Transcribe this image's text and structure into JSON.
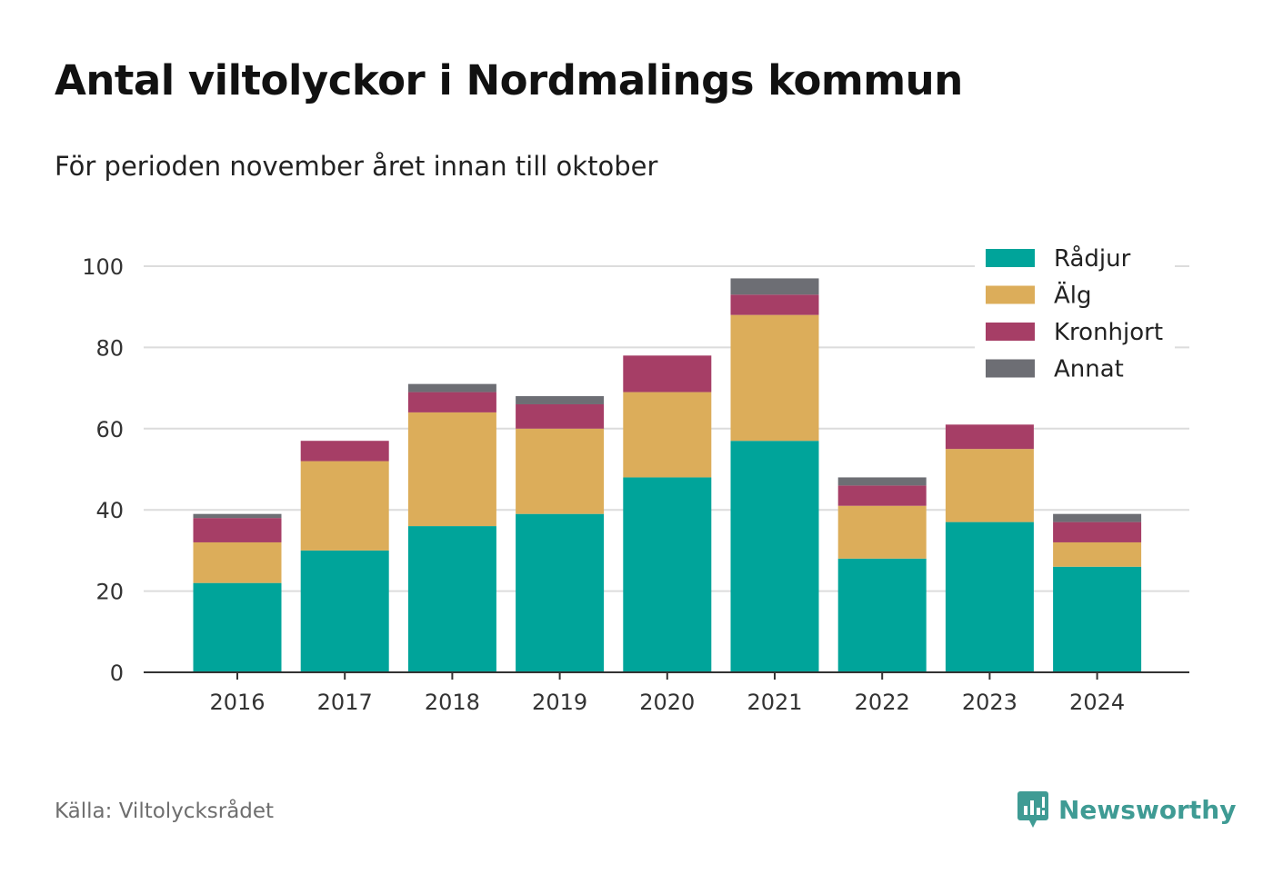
{
  "header": {
    "title": "Antal viltolyckor i Nordmalings kommun",
    "subtitle": "För perioden november året innan till oktober"
  },
  "footer": {
    "source": "Källa: Viltolycksrådet",
    "brand": "Newsworthy",
    "brand_icon": "newsworthy-logo-icon"
  },
  "chart_data": {
    "type": "bar",
    "stacked": true,
    "categories": [
      "2016",
      "2017",
      "2018",
      "2019",
      "2020",
      "2021",
      "2022",
      "2023",
      "2024"
    ],
    "series": [
      {
        "name": "Rådjur",
        "color": "#00a49a",
        "values": [
          22,
          30,
          36,
          39,
          48,
          57,
          28,
          37,
          26
        ]
      },
      {
        "name": "Älg",
        "color": "#dcad5a",
        "values": [
          10,
          22,
          28,
          21,
          21,
          31,
          13,
          18,
          6
        ]
      },
      {
        "name": "Kronhjort",
        "color": "#a63e66",
        "values": [
          6,
          5,
          5,
          6,
          9,
          5,
          5,
          6,
          5
        ]
      },
      {
        "name": "Annat",
        "color": "#6d6e74",
        "values": [
          1,
          0,
          2,
          2,
          0,
          4,
          2,
          0,
          2
        ]
      }
    ],
    "ylim": [
      0,
      100
    ],
    "yticks": [
      0,
      20,
      40,
      60,
      80,
      100
    ],
    "xlabel": "",
    "ylabel": "",
    "grid": true,
    "legend": "top-right"
  }
}
